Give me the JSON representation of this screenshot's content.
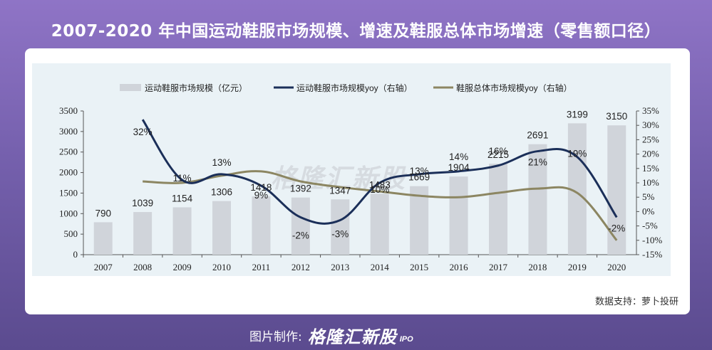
{
  "title": "2007-2020 年中国运动鞋服市场规模、增速及鞋服总体市场增速（零售额口径）",
  "source": "数据支持：萝卜投研",
  "credit": {
    "label": "图片制作:",
    "brand": "格隆汇新股",
    "suffix": "IPO"
  },
  "watermark": "格隆汇新股",
  "colors": {
    "bar": "#d0d4da",
    "sport_line": "#1b2f59",
    "total_line": "#8c8662"
  },
  "chart_data": {
    "type": "bar+line",
    "categories": [
      "2007",
      "2008",
      "2009",
      "2010",
      "2011",
      "2012",
      "2013",
      "2014",
      "2015",
      "2016",
      "2017",
      "2018",
      "2019",
      "2020"
    ],
    "series": [
      {
        "name": "运动鞋服市场规模（亿元）",
        "type": "bar",
        "axis": "left",
        "values": [
          790,
          1039,
          1154,
          1306,
          1418,
          1392,
          1347,
          1483,
          1669,
          1904,
          2215,
          2691,
          3199,
          3150
        ],
        "labels": [
          "790",
          "1039",
          "1154",
          "1306",
          "1418",
          "1392",
          "1347",
          "1483",
          "1669",
          "1904",
          "2215",
          "2691",
          "3199",
          "3150"
        ]
      },
      {
        "name": "运动鞋服市场规模yoy（右轴）",
        "type": "line",
        "axis": "right",
        "values": [
          null,
          32,
          11,
          13,
          9,
          -2,
          -3,
          10,
          13,
          14,
          16,
          21,
          19,
          -2
        ],
        "labels": [
          "",
          "32%",
          "11%",
          "13%",
          "9%",
          "-2%",
          "-3%",
          "10%",
          "13%",
          "14%",
          "16%",
          "21%",
          "19%",
          "-2%"
        ]
      },
      {
        "name": "鞋服总体市场规模yoy（右轴）",
        "type": "line",
        "axis": "right",
        "values": [
          null,
          10.5,
          10,
          12.5,
          14,
          10.5,
          8.5,
          7,
          5.5,
          5,
          6.5,
          8,
          6.5,
          -10
        ],
        "labels": []
      }
    ],
    "left_axis": {
      "min": 0,
      "max": 3500,
      "ticks": [
        "0",
        "500",
        "1000",
        "1500",
        "2000",
        "2500",
        "3000",
        "3500"
      ]
    },
    "right_axis": {
      "min": -15,
      "max": 35,
      "ticks": [
        "-15%",
        "-10%",
        "-5%",
        "0%",
        "5%",
        "10%",
        "15%",
        "20%",
        "25%",
        "30%",
        "35%"
      ]
    },
    "legend": {
      "placement": "top",
      "items": [
        "运动鞋服市场规模（亿元）",
        "运动鞋服市场规模yoy（右轴）",
        "鞋服总体市场规模yoy（右轴）"
      ]
    },
    "grid": false
  }
}
